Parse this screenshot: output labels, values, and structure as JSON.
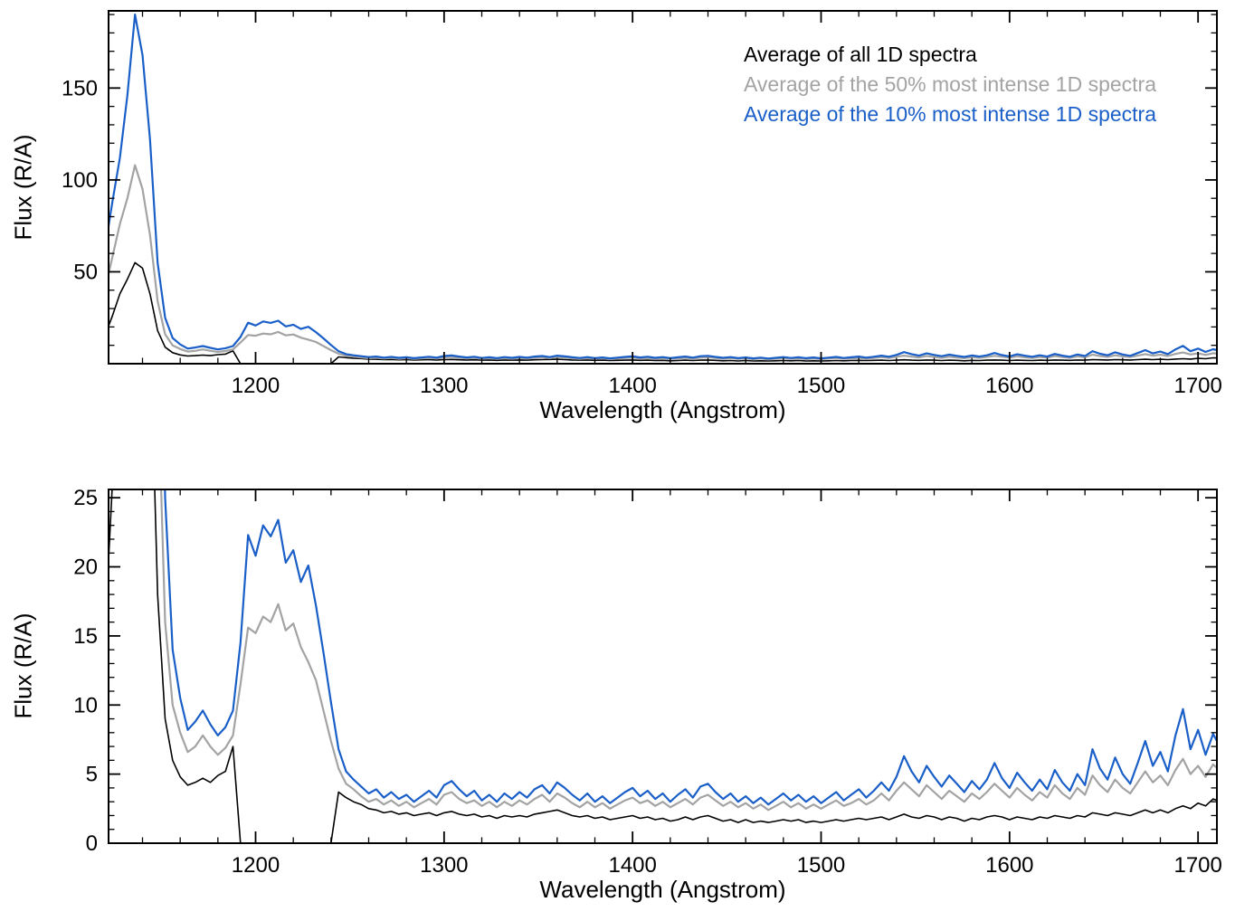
{
  "chart_data": {
    "type": "line",
    "title": "",
    "xlabel": "Wavelength (Angstrom)",
    "ylabel": "Flux (R/A)",
    "xlim": [
      1122,
      1710
    ],
    "xticks": [
      1200,
      1300,
      1400,
      1500,
      1600,
      1700
    ],
    "x_minor_step": 20,
    "legend_position": "top-right",
    "grid": false,
    "x": [
      1120,
      1124,
      1128,
      1132,
      1136,
      1140,
      1144,
      1148,
      1152,
      1156,
      1160,
      1164,
      1168,
      1172,
      1176,
      1180,
      1184,
      1188,
      1192,
      1196,
      1200,
      1204,
      1208,
      1212,
      1216,
      1220,
      1224,
      1228,
      1232,
      1236,
      1240,
      1244,
      1248,
      1252,
      1256,
      1260,
      1264,
      1268,
      1272,
      1276,
      1280,
      1284,
      1288,
      1292,
      1296,
      1300,
      1304,
      1308,
      1312,
      1316,
      1320,
      1324,
      1328,
      1332,
      1336,
      1340,
      1344,
      1348,
      1352,
      1356,
      1360,
      1364,
      1368,
      1372,
      1376,
      1380,
      1384,
      1388,
      1392,
      1396,
      1400,
      1404,
      1408,
      1412,
      1416,
      1420,
      1424,
      1428,
      1432,
      1436,
      1440,
      1444,
      1448,
      1452,
      1456,
      1460,
      1464,
      1468,
      1472,
      1476,
      1480,
      1484,
      1488,
      1492,
      1496,
      1500,
      1504,
      1508,
      1512,
      1516,
      1520,
      1524,
      1528,
      1532,
      1536,
      1540,
      1544,
      1548,
      1552,
      1556,
      1560,
      1564,
      1568,
      1572,
      1576,
      1580,
      1584,
      1588,
      1592,
      1596,
      1600,
      1604,
      1608,
      1612,
      1616,
      1620,
      1624,
      1628,
      1632,
      1636,
      1640,
      1644,
      1648,
      1652,
      1656,
      1660,
      1664,
      1668,
      1672,
      1676,
      1680,
      1684,
      1688,
      1692,
      1696,
      1700,
      1704,
      1708,
      1712
    ],
    "series": [
      {
        "name": "Average of all 1D spectra",
        "color": "#000000",
        "values": [
          15,
          26,
          38,
          46,
          55,
          52,
          38,
          18,
          9,
          6,
          4.8,
          4.2,
          4.4,
          4.7,
          4.4,
          4.9,
          5.2,
          7.0,
          0,
          0,
          0,
          0,
          0,
          0,
          0,
          0,
          0,
          0,
          0,
          0,
          0,
          3.7,
          3.3,
          3.0,
          2.8,
          2.5,
          2.4,
          2.2,
          2.3,
          2.1,
          2.2,
          2.0,
          2.1,
          2.2,
          2.0,
          2.2,
          2.3,
          2.1,
          2.0,
          2.1,
          1.9,
          2.0,
          1.8,
          2.0,
          1.9,
          2.0,
          1.9,
          2.1,
          2.2,
          2.3,
          2.4,
          2.2,
          2.0,
          1.9,
          2.0,
          1.8,
          1.9,
          1.7,
          1.8,
          1.9,
          2.0,
          1.8,
          1.9,
          1.7,
          1.8,
          1.6,
          1.7,
          1.9,
          1.7,
          1.9,
          2.0,
          1.8,
          1.6,
          1.7,
          1.5,
          1.7,
          1.5,
          1.6,
          1.5,
          1.6,
          1.7,
          1.6,
          1.7,
          1.5,
          1.6,
          1.5,
          1.6,
          1.7,
          1.6,
          1.7,
          1.8,
          1.7,
          1.8,
          1.9,
          1.7,
          1.9,
          2.1,
          1.9,
          1.8,
          2.0,
          1.9,
          1.7,
          1.9,
          1.8,
          1.6,
          1.8,
          1.7,
          1.9,
          2.0,
          1.9,
          1.7,
          1.9,
          1.8,
          1.7,
          1.9,
          1.8,
          2.0,
          1.9,
          1.8,
          2.0,
          1.9,
          2.2,
          2.1,
          2.0,
          2.2,
          2.1,
          2.0,
          2.2,
          2.4,
          2.2,
          2.4,
          2.2,
          2.5,
          2.7,
          2.5,
          2.9,
          2.7,
          3.2,
          3.0
        ]
      },
      {
        "name": "Average of the 50% most intense 1D spectra",
        "color": "#a3a3a3",
        "values": [
          40,
          58,
          76,
          90,
          108,
          95,
          70,
          34,
          16,
          10,
          8.0,
          6.6,
          7.0,
          7.8,
          7.0,
          6.4,
          6.9,
          7.8,
          11.5,
          15.6,
          15.2,
          16.4,
          16.0,
          17.3,
          15.4,
          15.9,
          14.2,
          13.1,
          11.8,
          9.6,
          7.4,
          5.4,
          4.3,
          3.9,
          3.4,
          3.0,
          3.2,
          2.8,
          3.1,
          2.7,
          3.0,
          2.6,
          2.9,
          3.2,
          2.8,
          3.5,
          3.7,
          3.2,
          2.9,
          3.1,
          2.7,
          3.0,
          2.6,
          3.0,
          2.7,
          3.1,
          2.8,
          3.2,
          3.5,
          3.0,
          3.6,
          3.3,
          2.9,
          2.6,
          3.0,
          2.6,
          2.9,
          2.5,
          2.8,
          3.1,
          3.3,
          2.9,
          3.1,
          2.7,
          3.0,
          2.6,
          2.9,
          3.2,
          2.8,
          3.3,
          3.5,
          3.1,
          2.7,
          3.0,
          2.6,
          2.9,
          2.5,
          2.8,
          2.4,
          2.7,
          3.0,
          2.6,
          2.9,
          2.5,
          2.8,
          2.5,
          2.8,
          3.1,
          2.7,
          2.9,
          3.2,
          2.8,
          3.1,
          3.6,
          3.1,
          3.8,
          4.4,
          3.9,
          3.4,
          4.2,
          3.7,
          3.2,
          3.8,
          3.4,
          3.0,
          3.6,
          3.2,
          3.7,
          4.3,
          3.8,
          3.3,
          4.0,
          3.5,
          3.1,
          3.7,
          3.3,
          4.2,
          3.6,
          3.2,
          4.0,
          3.5,
          4.9,
          4.2,
          3.7,
          4.6,
          4.0,
          3.6,
          4.4,
          5.2,
          4.4,
          4.9,
          4.2,
          5.3,
          6.1,
          5.0,
          5.6,
          4.8,
          5.7,
          5.2
        ]
      },
      {
        "name": "Average of the 10% most intense 1D spectra",
        "color": "#1a5fc8",
        "values": [
          62,
          88,
          112,
          146,
          190,
          168,
          122,
          55,
          25,
          14,
          10.5,
          8.2,
          8.8,
          9.6,
          8.6,
          7.8,
          8.4,
          9.6,
          14.5,
          22.3,
          20.8,
          23.0,
          22.2,
          23.4,
          20.3,
          21.2,
          18.9,
          20.1,
          17.2,
          13.8,
          10.2,
          6.8,
          5.2,
          4.6,
          4.1,
          3.6,
          3.9,
          3.3,
          3.7,
          3.2,
          3.5,
          3.0,
          3.4,
          3.8,
          3.3,
          4.2,
          4.5,
          3.9,
          3.4,
          3.8,
          3.1,
          3.5,
          3.0,
          3.6,
          3.2,
          3.7,
          3.3,
          3.9,
          4.2,
          3.6,
          4.4,
          4.0,
          3.5,
          3.1,
          3.6,
          3.0,
          3.4,
          2.9,
          3.3,
          3.7,
          4.0,
          3.4,
          3.8,
          3.2,
          3.6,
          3.0,
          3.5,
          3.9,
          3.3,
          4.1,
          4.3,
          3.7,
          3.2,
          3.6,
          3.0,
          3.4,
          2.9,
          3.3,
          2.8,
          3.2,
          3.6,
          3.1,
          3.5,
          3.0,
          3.4,
          2.9,
          3.3,
          3.7,
          3.1,
          3.5,
          3.9,
          3.3,
          3.8,
          4.4,
          3.8,
          4.8,
          6.3,
          5.2,
          4.4,
          5.6,
          4.8,
          4.1,
          4.9,
          4.3,
          3.7,
          4.5,
          3.9,
          4.6,
          5.8,
          4.7,
          4.0,
          5.1,
          4.4,
          3.8,
          4.6,
          3.9,
          5.3,
          4.4,
          3.8,
          5.0,
          4.2,
          6.8,
          5.4,
          4.6,
          6.2,
          5.0,
          4.3,
          5.8,
          7.4,
          5.6,
          6.6,
          5.2,
          7.8,
          9.7,
          6.8,
          8.2,
          6.4,
          7.9,
          6.9
        ]
      }
    ],
    "panels": [
      {
        "name": "full-scale",
        "ylim": [
          0,
          192
        ],
        "yticks": [
          50,
          100,
          150
        ],
        "y_minor_step": 10
      },
      {
        "name": "zoom",
        "ylim": [
          0,
          25.6
        ],
        "yticks": [
          0,
          5,
          10,
          15,
          20,
          25
        ],
        "y_minor_step": 1
      }
    ]
  }
}
